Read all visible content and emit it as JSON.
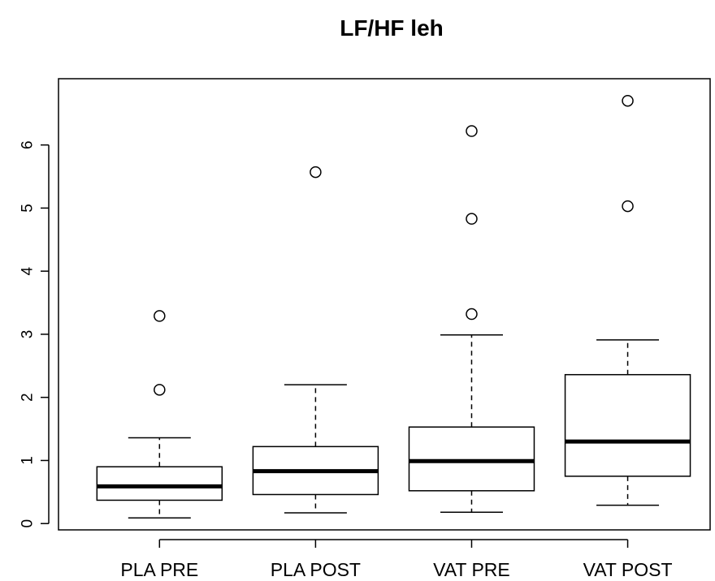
{
  "chart_data": {
    "type": "boxplot",
    "title": "LF/HF leh",
    "xlabel": "",
    "ylabel": "",
    "categories": [
      "PLA PRE",
      "PLA POST",
      "VAT PRE",
      "VAT POST"
    ],
    "ylim": [
      -0.1,
      7.05
    ],
    "yticks": [
      0,
      1,
      2,
      3,
      4,
      5,
      6
    ],
    "ytick_labels": [
      "0",
      "1",
      "2",
      "3",
      "4",
      "5",
      "6"
    ],
    "boxes": [
      {
        "whisker_low": 0.09,
        "q1": 0.37,
        "median": 0.59,
        "q3": 0.9,
        "whisker_high": 1.36,
        "outliers": [
          2.12,
          3.29
        ]
      },
      {
        "whisker_low": 0.17,
        "q1": 0.46,
        "median": 0.83,
        "q3": 1.22,
        "whisker_high": 2.2,
        "outliers": [
          5.57
        ]
      },
      {
        "whisker_low": 0.18,
        "q1": 0.52,
        "median": 0.99,
        "q3": 1.53,
        "whisker_high": 2.99,
        "outliers": [
          3.32,
          4.83,
          6.22
        ]
      },
      {
        "whisker_low": 0.29,
        "q1": 0.75,
        "median": 1.3,
        "q3": 2.36,
        "whisker_high": 2.91,
        "outliers": [
          5.03,
          6.7
        ]
      }
    ],
    "grid": false,
    "legend": "none"
  }
}
